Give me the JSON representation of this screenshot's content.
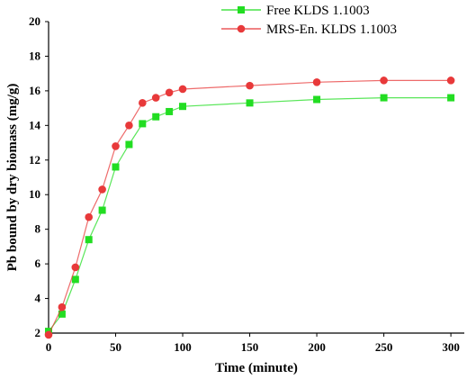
{
  "chart_data": {
    "type": "line",
    "title": "",
    "xlabel": "Time (minute)",
    "ylabel": "Pb bound by dry biomass (mg/g)",
    "xlim": [
      0,
      310
    ],
    "ylim": [
      2,
      20
    ],
    "xticks": [
      0,
      50,
      100,
      150,
      200,
      250,
      300
    ],
    "yticks": [
      2,
      4,
      6,
      8,
      10,
      12,
      14,
      16,
      18,
      20
    ],
    "grid": false,
    "legend_position": "top-right",
    "series": [
      {
        "name": "Free KLDS 1.1003",
        "color": "#22dd22",
        "marker": "square",
        "x": [
          0,
          10,
          20,
          30,
          40,
          50,
          60,
          70,
          80,
          90,
          100,
          150,
          200,
          250,
          300
        ],
        "y": [
          2.1,
          3.1,
          5.1,
          7.4,
          9.1,
          11.6,
          12.9,
          14.1,
          14.5,
          14.8,
          15.1,
          15.3,
          15.5,
          15.6,
          15.6
        ]
      },
      {
        "name": "MRS-En. KLDS 1.1003",
        "color": "#e8393a",
        "marker": "circle",
        "x": [
          0,
          10,
          20,
          30,
          40,
          50,
          60,
          70,
          80,
          90,
          100,
          150,
          200,
          250,
          300
        ],
        "y": [
          1.9,
          3.5,
          5.8,
          8.7,
          10.3,
          12.8,
          14.0,
          15.3,
          15.6,
          15.9,
          16.1,
          16.3,
          16.5,
          16.6,
          16.6
        ]
      }
    ]
  }
}
